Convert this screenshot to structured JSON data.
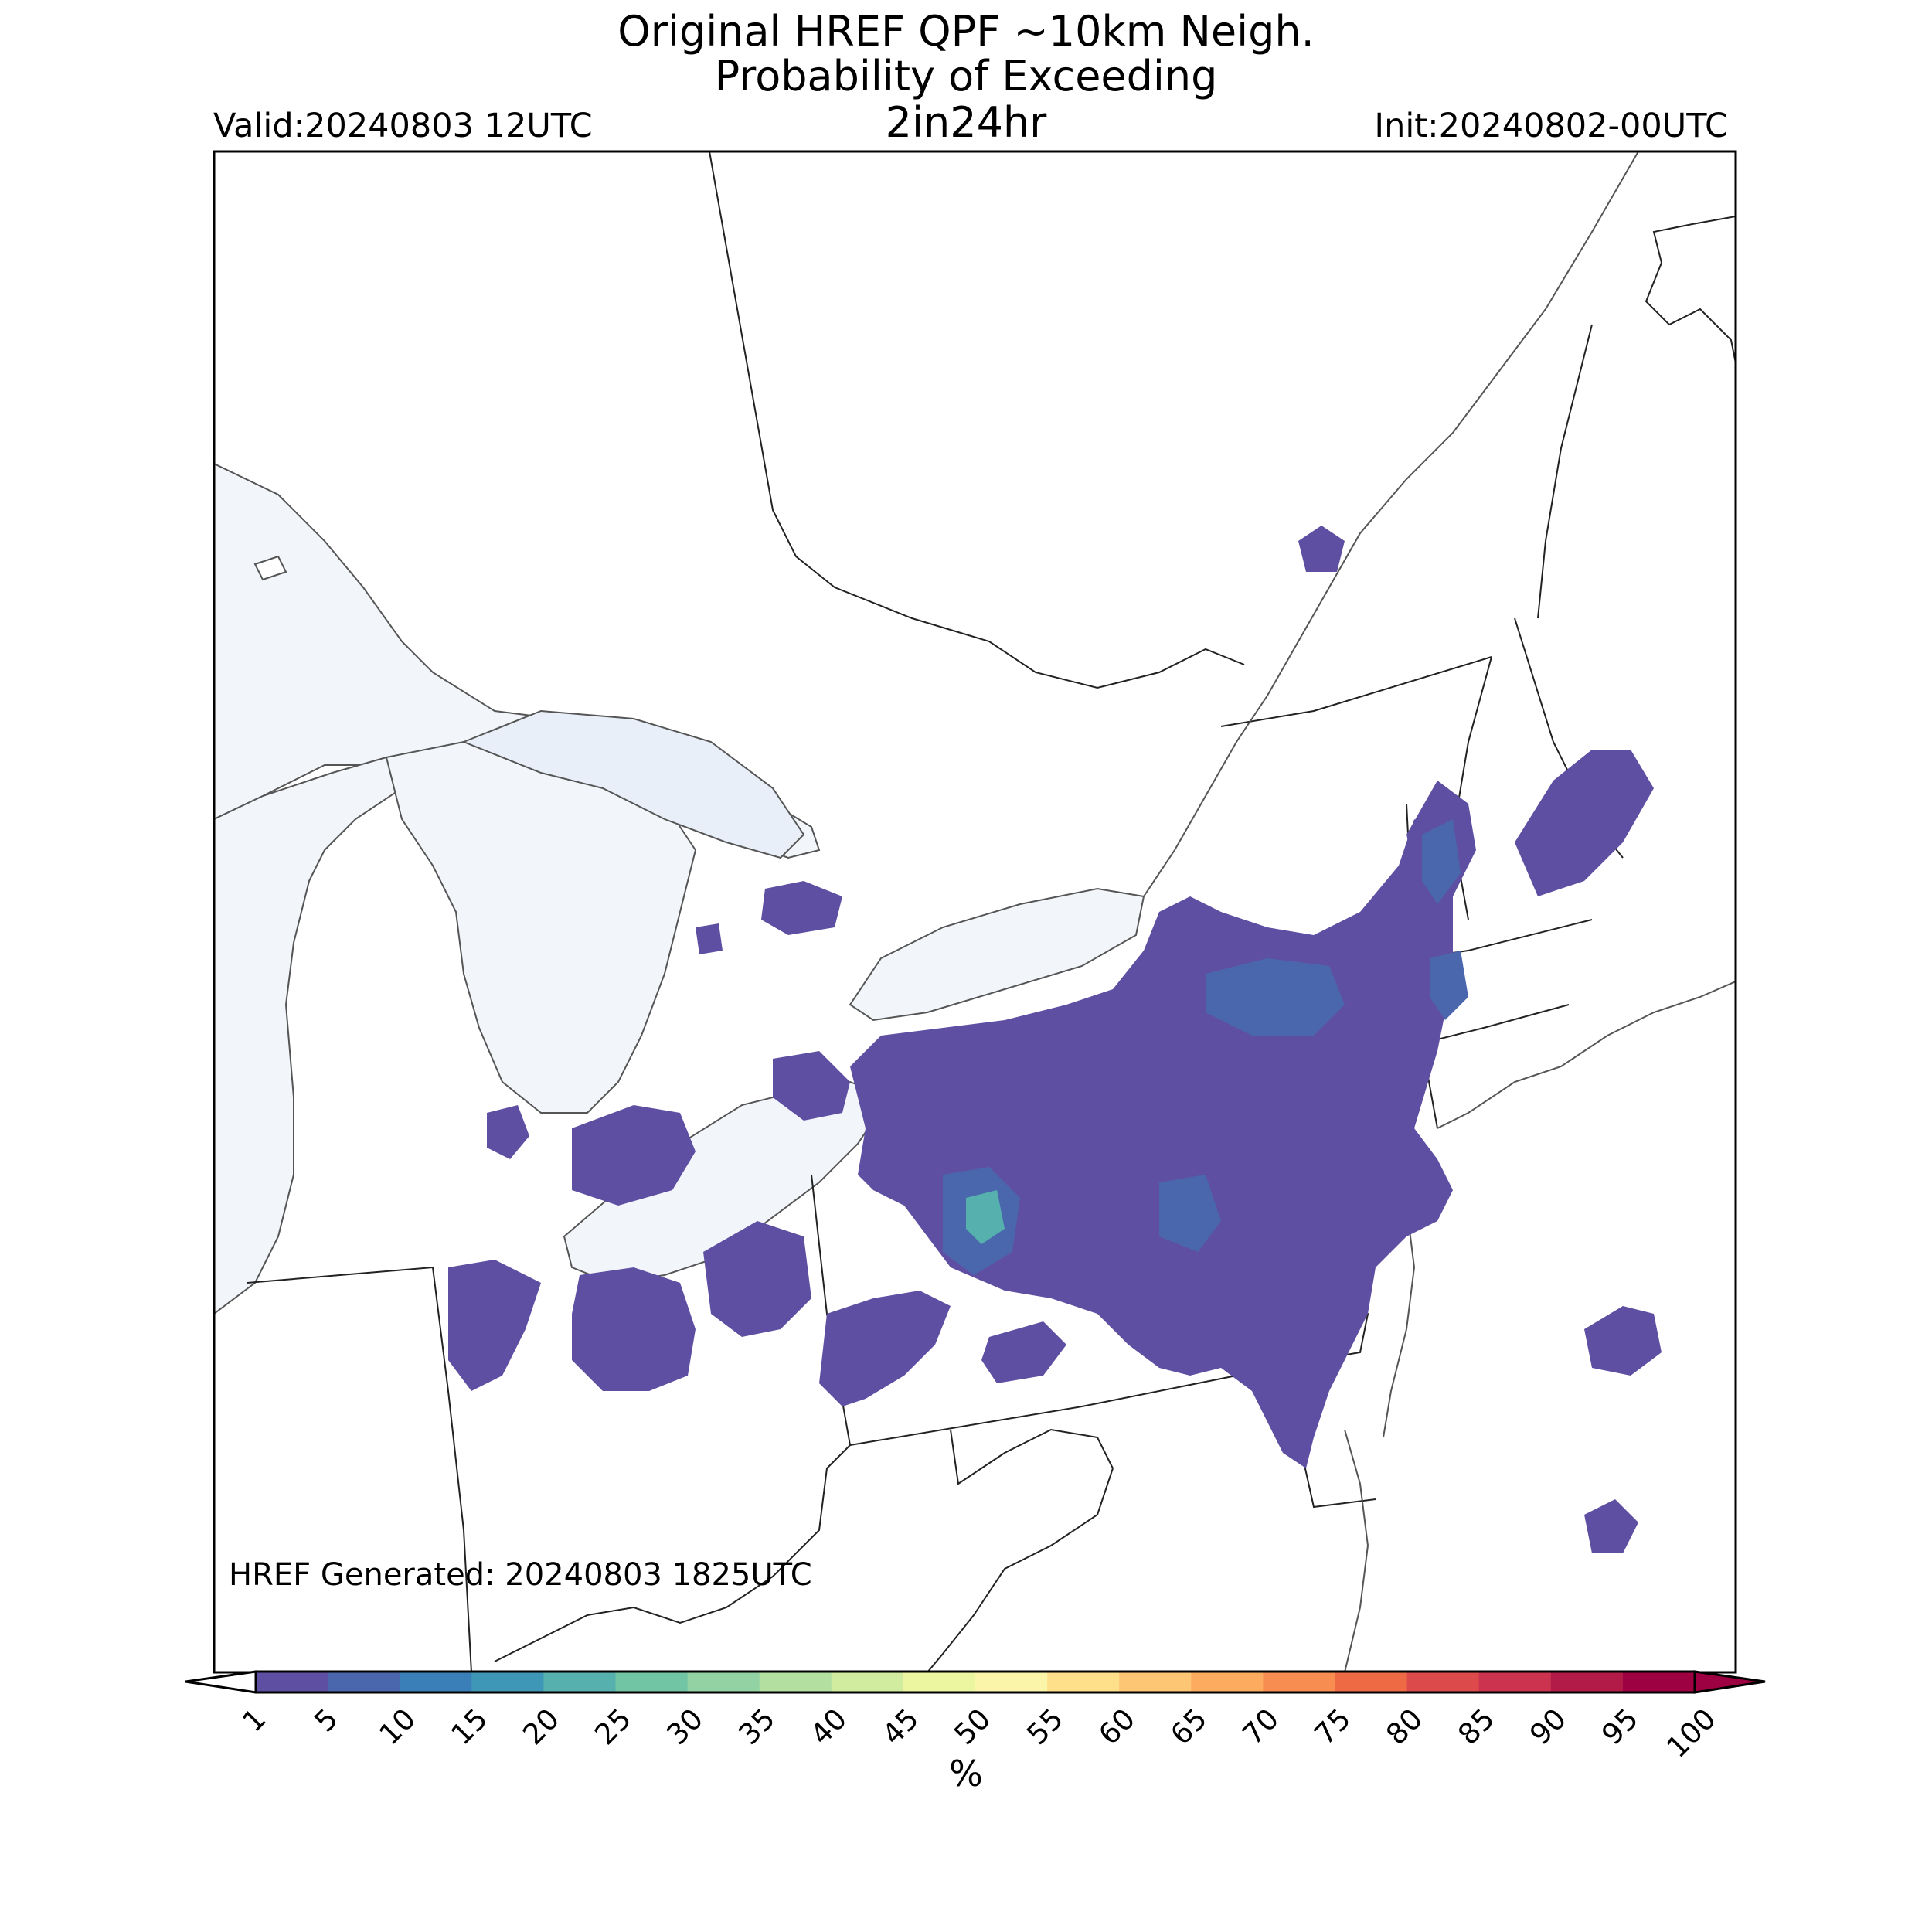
{
  "header": {
    "title_lines": [
      "Original HREF QPF ~10km Neigh.",
      "Probability of Exceeding",
      "2in24hr"
    ],
    "valid": "Valid:20240803 12UTC",
    "init": "Init:20240802-00UTC"
  },
  "map": {
    "region": "Northeastern US / Great Lakes",
    "water_color": "#f2f6fb",
    "land_color": "#ffffff"
  },
  "colorbar": {
    "levels": [
      "1",
      "5",
      "10",
      "15",
      "20",
      "25",
      "30",
      "35",
      "40",
      "45",
      "50",
      "55",
      "60",
      "65",
      "70",
      "75",
      "80",
      "85",
      "90",
      "95",
      "100"
    ],
    "colors": [
      "#5e4fa2",
      "#4a67ad",
      "#3a7fb8",
      "#3f97b7",
      "#56b0ad",
      "#72c5a4",
      "#92d2a3",
      "#b3e0a1",
      "#d1ec9f",
      "#ecf6a1",
      "#fbf5aa",
      "#fee08b",
      "#fdc674",
      "#fdab5f",
      "#f88d52",
      "#ee6a44",
      "#dd4a4c",
      "#cb334f",
      "#b21b47",
      "#9e0142"
    ],
    "unit_label": "%"
  },
  "footer": {
    "generated": "HREF Generated: 20240803 1825UTC"
  }
}
